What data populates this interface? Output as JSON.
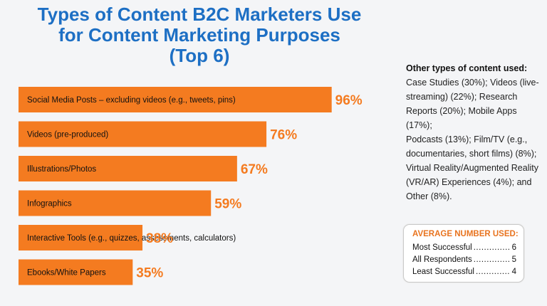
{
  "title": {
    "line1": "Types of Content B2C Marketers Use",
    "line2": "for Content Marketing Purposes",
    "line3": "(Top 6)"
  },
  "colors": {
    "bar": "#f47b20",
    "title": "#1d6fc4",
    "accent_text": "#e8731e"
  },
  "chart_data": {
    "type": "bar",
    "orientation": "horizontal",
    "categories": [
      "Social Media Posts – excluding videos (e.g., tweets, pins)",
      "Videos (pre-produced)",
      "Illustrations/Photos",
      "Infographics",
      "Interactive Tools (e.g., quizzes, assessments, calculators)",
      "Ebooks/White Papers"
    ],
    "values": [
      96,
      76,
      67,
      59,
      38,
      35
    ],
    "value_labels": [
      "96%",
      "76%",
      "67%",
      "59%",
      "38%",
      "35%"
    ],
    "xlim": [
      0,
      100
    ],
    "grid": false,
    "legend": "none"
  },
  "other_types": {
    "heading": "Other types of content used:",
    "lines": [
      "Case Studies (30%); Videos (live-",
      "streaming) (22%); Research",
      "Reports (20%); Mobile Apps (17%);",
      "Podcasts (13%); Film/TV (e.g.,",
      "documentaries, short films) (8%);",
      "Virtual Reality/Augmented Reality",
      "(VR/AR) Experiences (4%); and",
      "Other (8%)."
    ]
  },
  "average_box": {
    "heading": "AVERAGE NUMBER USED:",
    "rows": [
      {
        "label": "Most Successful",
        "dots": "..................",
        "value": "6"
      },
      {
        "label": "All Respondents",
        "dots": "...............",
        "value": "5"
      },
      {
        "label": "Least Successful",
        "dots": "...............",
        "value": "4"
      }
    ]
  }
}
